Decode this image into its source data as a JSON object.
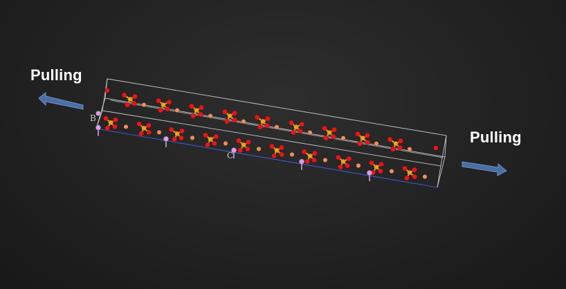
{
  "labels": {
    "left": "Pulling",
    "right": "Pulling"
  },
  "axes": {
    "b": "B",
    "c": "C"
  },
  "colors": {
    "background": "#222222",
    "arrow": "#4a6fa5",
    "cell_edge": "#c8c8c8",
    "cell_edge_bottom": "#3a5fcf",
    "oxygen": "#e8161b",
    "phosphorus": "#f0a21e",
    "metal": "#f08f5c",
    "lithium": "#d8a0e6"
  }
}
